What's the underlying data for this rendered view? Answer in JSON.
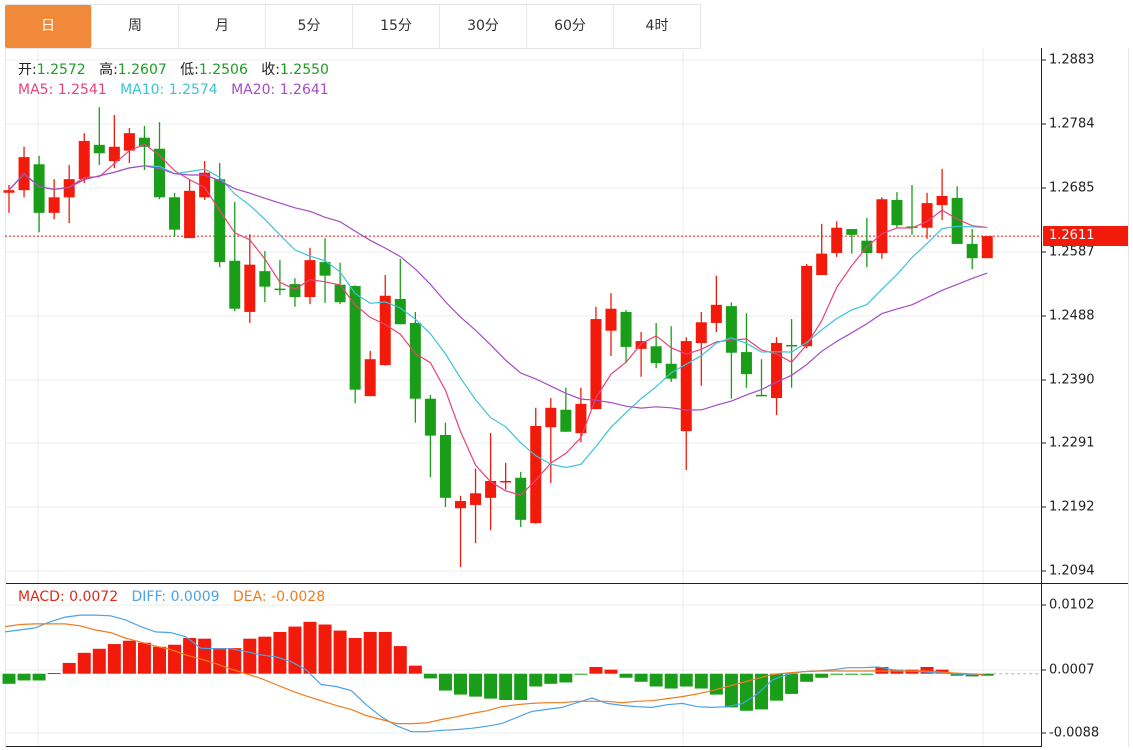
{
  "tabs": [
    {
      "label": "日",
      "active": true
    },
    {
      "label": "周"
    },
    {
      "label": "月"
    },
    {
      "label": "5分"
    },
    {
      "label": "15分"
    },
    {
      "label": "30分"
    },
    {
      "label": "60分"
    },
    {
      "label": "4时"
    }
  ],
  "ohlc_info": {
    "open_label": "开:",
    "open": "1.2572",
    "high_label": "高:",
    "high": "1.2607",
    "low_label": "低:",
    "low": "1.2506",
    "close_label": "收:",
    "close": "1.2550"
  },
  "ma_info": {
    "ma5": "MA5: 1.2541",
    "ma10": "MA10: 1.2574",
    "ma20": "MA20: 1.2641"
  },
  "macd_info": {
    "macd": "MACD: 0.0072",
    "diff": "DIFF: 0.0009",
    "dea": "DEA: -0.0028"
  },
  "current_price": "1.2611",
  "colors": {
    "up": "#f21a0a",
    "down": "#1a9e1a",
    "ma5": "#e6447a",
    "ma10": "#3cc4d8",
    "ma20": "#a64cc4",
    "diff": "#4aa3e8",
    "dea": "#f07c20",
    "accent": "#f0893a"
  },
  "chart_data": [
    {
      "type": "candlestick",
      "title": "",
      "ylim": [
        1.2094,
        1.2883
      ],
      "y_ticks": [
        "1.2883",
        "1.2784",
        "1.2685",
        "1.2587",
        "1.2488",
        "1.2390",
        "1.2291",
        "1.2192",
        "1.2094"
      ],
      "grid": true,
      "current_price": 1.2611,
      "ma_periods": [
        5,
        10,
        20
      ],
      "ohlc": [
        [
          1.2678,
          1.269,
          1.2647,
          1.2682
        ],
        [
          1.2682,
          1.2749,
          1.2671,
          1.2733
        ],
        [
          1.2722,
          1.2735,
          1.2617,
          1.2647
        ],
        [
          1.2647,
          1.2699,
          1.2637,
          1.2671
        ],
        [
          1.2671,
          1.2721,
          1.2631,
          1.2699
        ],
        [
          1.2699,
          1.277,
          1.2693,
          1.2758
        ],
        [
          1.2752,
          1.281,
          1.2721,
          1.2739
        ],
        [
          1.2727,
          1.2798,
          1.2716,
          1.2749
        ],
        [
          1.2743,
          1.2778,
          1.2724,
          1.277
        ],
        [
          1.2763,
          1.2781,
          1.2713,
          1.2749
        ],
        [
          1.2746,
          1.2787,
          1.2668,
          1.2671
        ],
        [
          1.2671,
          1.2678,
          1.261,
          1.2621
        ],
        [
          1.2608,
          1.2698,
          1.2608,
          1.2681
        ],
        [
          1.2671,
          1.2727,
          1.2667,
          1.2709
        ],
        [
          1.2699,
          1.2724,
          1.2563,
          1.2571
        ],
        [
          1.2573,
          1.2664,
          1.2495,
          1.2499
        ],
        [
          1.2494,
          1.2614,
          1.2477,
          1.2567
        ],
        [
          1.2557,
          1.2588,
          1.2509,
          1.2533
        ],
        [
          1.253,
          1.2574,
          1.252,
          1.2529
        ],
        [
          1.2537,
          1.2546,
          1.2502,
          1.2517
        ],
        [
          1.2517,
          1.2593,
          1.2506,
          1.2574
        ],
        [
          1.2571,
          1.2608,
          1.2508,
          1.255
        ],
        [
          1.2536,
          1.257,
          1.2506,
          1.2509
        ],
        [
          1.2534,
          1.2535,
          1.2353,
          1.2374
        ],
        [
          1.2364,
          1.2434,
          1.2364,
          1.2421
        ],
        [
          1.2412,
          1.2551,
          1.2411,
          1.2519
        ],
        [
          1.2514,
          1.2576,
          1.2475,
          1.2475
        ],
        [
          1.2477,
          1.2494,
          1.2323,
          1.236
        ],
        [
          1.236,
          1.2366,
          1.2239,
          1.2303
        ],
        [
          1.2304,
          1.2323,
          1.2193,
          1.2207
        ],
        [
          1.2191,
          1.221,
          1.21,
          1.2202
        ],
        [
          1.2196,
          1.2252,
          1.2137,
          1.2214
        ],
        [
          1.2207,
          1.2307,
          1.2157,
          1.2233
        ],
        [
          1.2232,
          1.2261,
          1.222,
          1.2233
        ],
        [
          1.2238,
          1.2247,
          1.2162,
          1.2173
        ],
        [
          1.2168,
          1.2346,
          1.2167,
          1.2318
        ],
        [
          1.2316,
          1.2361,
          1.223,
          1.2346
        ],
        [
          1.2343,
          1.2377,
          1.2309,
          1.2309
        ],
        [
          1.2307,
          1.2377,
          1.2293,
          1.2352
        ],
        [
          1.2344,
          1.2502,
          1.2344,
          1.2483
        ],
        [
          1.2465,
          1.2523,
          1.2426,
          1.2499
        ],
        [
          1.2494,
          1.2497,
          1.2415,
          1.244
        ],
        [
          1.2437,
          1.2463,
          1.2394,
          1.2449
        ],
        [
          1.2441,
          1.2477,
          1.2407,
          1.2415
        ],
        [
          1.2414,
          1.2472,
          1.2386,
          1.2391
        ],
        [
          1.231,
          1.2455,
          1.225,
          1.2449
        ],
        [
          1.2446,
          1.2494,
          1.238,
          1.2478
        ],
        [
          1.2477,
          1.255,
          1.2463,
          1.2505
        ],
        [
          1.2503,
          1.2509,
          1.236,
          1.2431
        ],
        [
          1.2432,
          1.2492,
          1.2377,
          1.2398
        ],
        [
          1.2366,
          1.2421,
          1.2364,
          1.2365
        ],
        [
          1.2361,
          1.2455,
          1.2335,
          1.2446
        ],
        [
          1.2443,
          1.2483,
          1.2377,
          1.2442
        ],
        [
          1.2441,
          1.2568,
          1.2438,
          1.2565
        ],
        [
          1.2551,
          1.263,
          1.2551,
          1.2584
        ],
        [
          1.2585,
          1.2634,
          1.2579,
          1.2624
        ],
        [
          1.2622,
          1.2622,
          1.2584,
          1.2613
        ],
        [
          1.2604,
          1.2639,
          1.2563,
          1.2585
        ],
        [
          1.2585,
          1.2671,
          1.2576,
          1.2668
        ],
        [
          1.2667,
          1.2679,
          1.2624,
          1.2628
        ],
        [
          1.2626,
          1.269,
          1.2613,
          1.2625
        ],
        [
          1.2624,
          1.2678,
          1.2607,
          1.2662
        ],
        [
          1.2659,
          1.2715,
          1.2636,
          1.2673
        ],
        [
          1.267,
          1.2688,
          1.2599,
          1.2599
        ],
        [
          1.2599,
          1.2622,
          1.256,
          1.2577
        ],
        [
          1.2577,
          1.2611,
          1.2577,
          1.2611
        ]
      ]
    },
    {
      "type": "bar",
      "title": "MACD",
      "ylim": [
        -0.0088,
        0.0102
      ],
      "y_ticks": [
        "0.0102",
        "0.0007",
        "-0.0088"
      ],
      "macd": [
        -0.0015,
        -0.001,
        -0.001,
        0.0001,
        0.0016,
        0.0031,
        0.0037,
        0.0044,
        0.0049,
        0.0046,
        0.004,
        0.0043,
        0.0053,
        0.0052,
        0.0038,
        0.0038,
        0.0052,
        0.0055,
        0.0062,
        0.007,
        0.0077,
        0.0073,
        0.0064,
        0.0053,
        0.0062,
        0.0062,
        0.0041,
        0.0012,
        -0.0007,
        -0.0025,
        -0.0031,
        -0.0034,
        -0.0037,
        -0.0039,
        -0.0039,
        -0.0019,
        -0.0015,
        -0.0013,
        -0.0001,
        0.001,
        0.0006,
        -0.0006,
        -0.0012,
        -0.0019,
        -0.0022,
        -0.0019,
        -0.0022,
        -0.0031,
        -0.005,
        -0.0055,
        -0.0053,
        -0.004,
        -0.003,
        -0.0012,
        -0.0006,
        -0.0001,
        -0.0001,
        -0.0001,
        0.001,
        0.0006,
        0.0006,
        0.001,
        0.0006,
        -0.0003,
        -0.0004,
        -0.0003
      ],
      "diff": [
        0.0062,
        0.0065,
        0.0068,
        0.0077,
        0.0084,
        0.0087,
        0.0087,
        0.0086,
        0.008,
        0.007,
        0.0062,
        0.0061,
        0.0055,
        0.0038,
        0.0037,
        0.0037,
        0.0033,
        0.0028,
        0.0025,
        0.0018,
        0.0006,
        -0.0016,
        -0.0019,
        -0.0025,
        -0.0046,
        -0.0064,
        -0.0077,
        -0.0086,
        -0.0086,
        -0.0084,
        -0.0083,
        -0.0081,
        -0.0078,
        -0.0074,
        -0.0065,
        -0.0056,
        -0.0053,
        -0.005,
        -0.0043,
        -0.0036,
        -0.0044,
        -0.0047,
        -0.0049,
        -0.005,
        -0.0046,
        -0.0044,
        -0.0049,
        -0.005,
        -0.0049,
        -0.0044,
        -0.003,
        -0.0009,
        -0.0001,
        0.0003,
        0.0004,
        0.0006,
        0.0009,
        0.0009,
        0.001,
        0.0006,
        0.0004,
        0.0003,
        0.0001,
        0.0,
        -0.0001,
        -0.0001
      ],
      "dea": [
        0.007,
        0.0073,
        0.0074,
        0.0074,
        0.0074,
        0.0071,
        0.0065,
        0.0061,
        0.0053,
        0.0047,
        0.0041,
        0.0036,
        0.0028,
        0.0022,
        0.0015,
        0.0007,
        0.0,
        -0.0007,
        -0.0016,
        -0.0025,
        -0.0033,
        -0.004,
        -0.0047,
        -0.0053,
        -0.0062,
        -0.0068,
        -0.0074,
        -0.0074,
        -0.0073,
        -0.0068,
        -0.0064,
        -0.0059,
        -0.0055,
        -0.0049,
        -0.0046,
        -0.0044,
        -0.0043,
        -0.0043,
        -0.0041,
        -0.0041,
        -0.0041,
        -0.0043,
        -0.0041,
        -0.004,
        -0.0037,
        -0.0034,
        -0.003,
        -0.0025,
        -0.0019,
        -0.0013,
        -0.0007,
        -0.0001,
        0.0001,
        0.0003,
        0.0004,
        0.0004,
        0.0004,
        0.0004,
        0.0004,
        0.0004,
        0.0004,
        0.0004,
        0.0003,
        0.0001,
        0.0,
        -0.0001
      ]
    }
  ]
}
